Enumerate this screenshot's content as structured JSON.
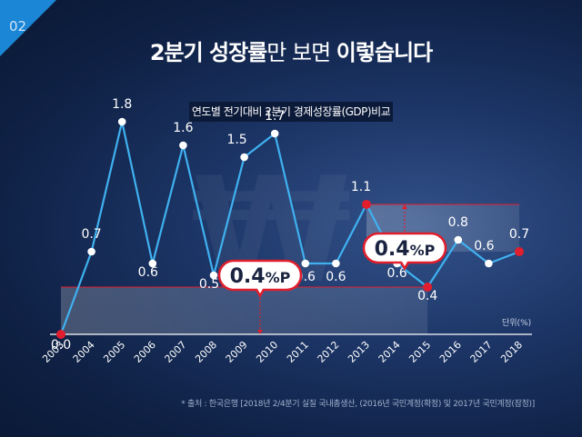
{
  "page_number": "02",
  "title": {
    "part1": "2분기 성장률",
    "part2": "만 보면 ",
    "part3": "이렇습니다"
  },
  "watermark_symbol": "₩",
  "source_note": "* 출처 : 한국은행 [2018년 2/4분기 실질 국내총생산, (2016년 국민계정(확정) 및 2017년 국민계정(잠정)]",
  "colors": {
    "line": "#3fb1f0",
    "marker": "#ffffff",
    "highlight": "#e01e2d",
    "accent": "#1b86d6"
  },
  "chart_data": {
    "type": "line",
    "title": "연도별 전기대비 2분기 경제성장률(GDP)비교",
    "unit_label": "단위(%)",
    "x": [
      "2003",
      "2004",
      "2005",
      "2006",
      "2007",
      "2008",
      "2009",
      "2010",
      "2011",
      "2012",
      "2013",
      "2014",
      "2015",
      "2016",
      "2017",
      "2018"
    ],
    "values": [
      0.0,
      0.7,
      1.8,
      0.6,
      1.6,
      0.5,
      1.5,
      1.7,
      0.6,
      0.6,
      1.1,
      0.6,
      0.4,
      0.8,
      0.6,
      0.7
    ],
    "value_labels": [
      "0.0",
      "0.7",
      "1.8",
      "0.6",
      "1.6",
      "0.5",
      "1.5",
      "1.7",
      "0.6",
      "0.6",
      "1.1",
      "0.6",
      "0.4",
      "0.8",
      "0.6",
      "0.7"
    ],
    "highlighted_years": [
      "2003",
      "2013",
      "2015",
      "2018"
    ],
    "ylim": [
      0,
      2
    ],
    "grid": false,
    "annotations": [
      {
        "text_main": "0.4",
        "text_unit": "%P",
        "from": "2003",
        "to": "2015"
      },
      {
        "text_main": "0.4",
        "text_unit": "%P",
        "from": "2013",
        "to": "2018"
      }
    ]
  }
}
